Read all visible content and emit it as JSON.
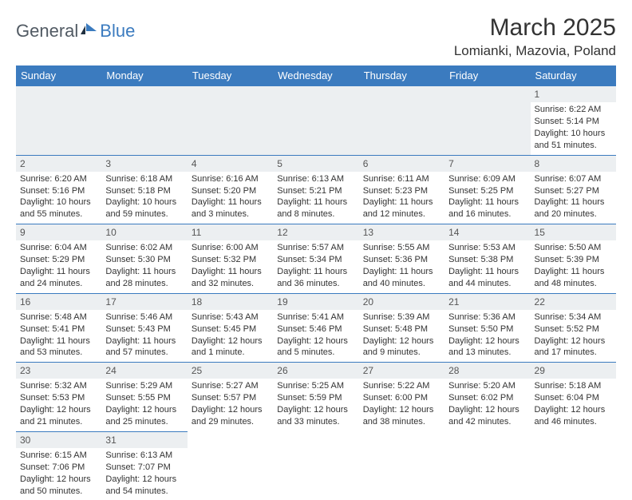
{
  "logo": {
    "general": "General",
    "blue": "Blue"
  },
  "header": {
    "month_title": "March 2025",
    "location": "Lomianki, Mazovia, Poland"
  },
  "colors": {
    "header_bg": "#3b7bbf",
    "header_text": "#ffffff",
    "daynum_bg": "#eceff1",
    "cell_border": "#3b7bbf",
    "body_text": "#333333"
  },
  "day_headers": [
    "Sunday",
    "Monday",
    "Tuesday",
    "Wednesday",
    "Thursday",
    "Friday",
    "Saturday"
  ],
  "weeks": [
    [
      null,
      null,
      null,
      null,
      null,
      null,
      {
        "n": "1",
        "sr": "6:22 AM",
        "ss": "5:14 PM",
        "dl": "10 hours and 51 minutes."
      }
    ],
    [
      {
        "n": "2",
        "sr": "6:20 AM",
        "ss": "5:16 PM",
        "dl": "10 hours and 55 minutes."
      },
      {
        "n": "3",
        "sr": "6:18 AM",
        "ss": "5:18 PM",
        "dl": "10 hours and 59 minutes."
      },
      {
        "n": "4",
        "sr": "6:16 AM",
        "ss": "5:20 PM",
        "dl": "11 hours and 3 minutes."
      },
      {
        "n": "5",
        "sr": "6:13 AM",
        "ss": "5:21 PM",
        "dl": "11 hours and 8 minutes."
      },
      {
        "n": "6",
        "sr": "6:11 AM",
        "ss": "5:23 PM",
        "dl": "11 hours and 12 minutes."
      },
      {
        "n": "7",
        "sr": "6:09 AM",
        "ss": "5:25 PM",
        "dl": "11 hours and 16 minutes."
      },
      {
        "n": "8",
        "sr": "6:07 AM",
        "ss": "5:27 PM",
        "dl": "11 hours and 20 minutes."
      }
    ],
    [
      {
        "n": "9",
        "sr": "6:04 AM",
        "ss": "5:29 PM",
        "dl": "11 hours and 24 minutes."
      },
      {
        "n": "10",
        "sr": "6:02 AM",
        "ss": "5:30 PM",
        "dl": "11 hours and 28 minutes."
      },
      {
        "n": "11",
        "sr": "6:00 AM",
        "ss": "5:32 PM",
        "dl": "11 hours and 32 minutes."
      },
      {
        "n": "12",
        "sr": "5:57 AM",
        "ss": "5:34 PM",
        "dl": "11 hours and 36 minutes."
      },
      {
        "n": "13",
        "sr": "5:55 AM",
        "ss": "5:36 PM",
        "dl": "11 hours and 40 minutes."
      },
      {
        "n": "14",
        "sr": "5:53 AM",
        "ss": "5:38 PM",
        "dl": "11 hours and 44 minutes."
      },
      {
        "n": "15",
        "sr": "5:50 AM",
        "ss": "5:39 PM",
        "dl": "11 hours and 48 minutes."
      }
    ],
    [
      {
        "n": "16",
        "sr": "5:48 AM",
        "ss": "5:41 PM",
        "dl": "11 hours and 53 minutes."
      },
      {
        "n": "17",
        "sr": "5:46 AM",
        "ss": "5:43 PM",
        "dl": "11 hours and 57 minutes."
      },
      {
        "n": "18",
        "sr": "5:43 AM",
        "ss": "5:45 PM",
        "dl": "12 hours and 1 minute."
      },
      {
        "n": "19",
        "sr": "5:41 AM",
        "ss": "5:46 PM",
        "dl": "12 hours and 5 minutes."
      },
      {
        "n": "20",
        "sr": "5:39 AM",
        "ss": "5:48 PM",
        "dl": "12 hours and 9 minutes."
      },
      {
        "n": "21",
        "sr": "5:36 AM",
        "ss": "5:50 PM",
        "dl": "12 hours and 13 minutes."
      },
      {
        "n": "22",
        "sr": "5:34 AM",
        "ss": "5:52 PM",
        "dl": "12 hours and 17 minutes."
      }
    ],
    [
      {
        "n": "23",
        "sr": "5:32 AM",
        "ss": "5:53 PM",
        "dl": "12 hours and 21 minutes."
      },
      {
        "n": "24",
        "sr": "5:29 AM",
        "ss": "5:55 PM",
        "dl": "12 hours and 25 minutes."
      },
      {
        "n": "25",
        "sr": "5:27 AM",
        "ss": "5:57 PM",
        "dl": "12 hours and 29 minutes."
      },
      {
        "n": "26",
        "sr": "5:25 AM",
        "ss": "5:59 PM",
        "dl": "12 hours and 33 minutes."
      },
      {
        "n": "27",
        "sr": "5:22 AM",
        "ss": "6:00 PM",
        "dl": "12 hours and 38 minutes."
      },
      {
        "n": "28",
        "sr": "5:20 AM",
        "ss": "6:02 PM",
        "dl": "12 hours and 42 minutes."
      },
      {
        "n": "29",
        "sr": "5:18 AM",
        "ss": "6:04 PM",
        "dl": "12 hours and 46 minutes."
      }
    ],
    [
      {
        "n": "30",
        "sr": "6:15 AM",
        "ss": "7:06 PM",
        "dl": "12 hours and 50 minutes."
      },
      {
        "n": "31",
        "sr": "6:13 AM",
        "ss": "7:07 PM",
        "dl": "12 hours and 54 minutes."
      },
      null,
      null,
      null,
      null,
      null
    ]
  ],
  "labels": {
    "sunrise": "Sunrise: ",
    "sunset": "Sunset: ",
    "daylight": "Daylight: "
  }
}
